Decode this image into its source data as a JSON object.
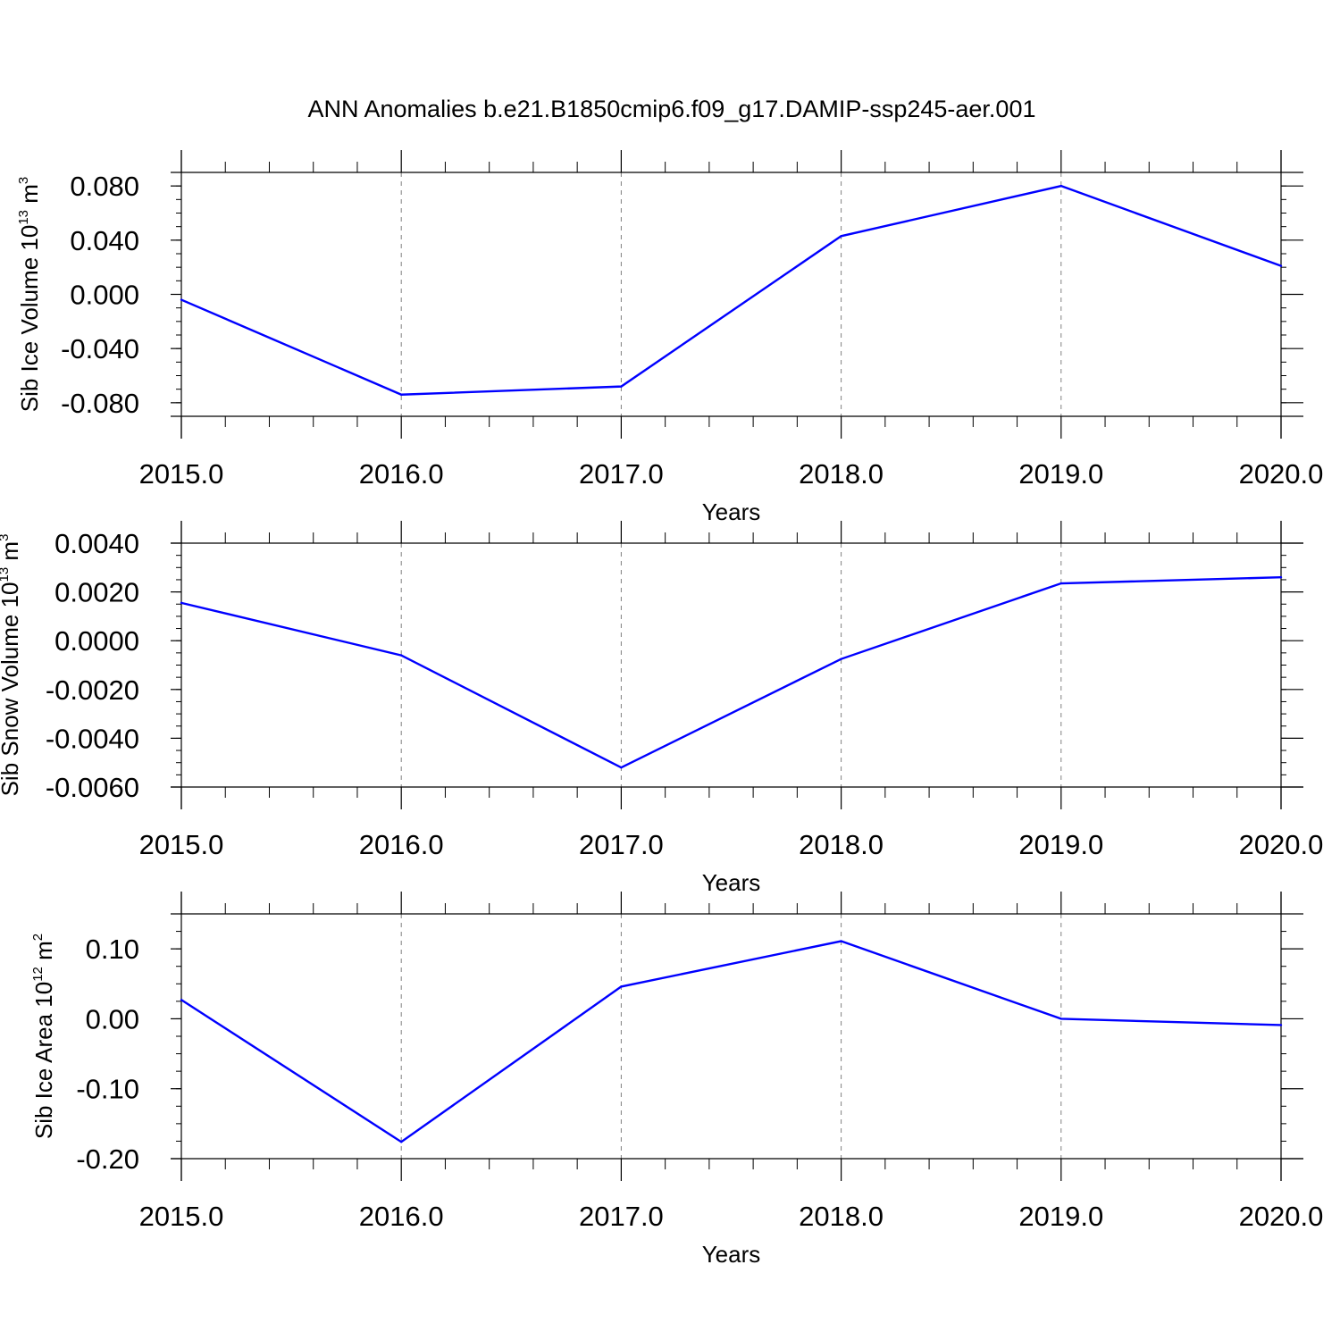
{
  "figure": {
    "title": "ANN Anomalies b.e21.B1850cmip6.f09_g17.DAMIP-ssp245-aer.001"
  },
  "chart_data": [
    {
      "type": "line",
      "ylabel": {
        "base": "Sib Ice Volume 10",
        "exp1": "13",
        "unit": " m",
        "exp2": "3"
      },
      "xlabel": "Years",
      "x": [
        2015,
        2016,
        2017,
        2018,
        2019,
        2020
      ],
      "xlim": [
        2015,
        2020
      ],
      "xticks": [
        "2015.0",
        "2016.0",
        "2017.0",
        "2018.0",
        "2019.0",
        "2020.0"
      ],
      "series": [
        {
          "values": [
            -0.004,
            -0.074,
            -0.068,
            0.043,
            0.08,
            0.021
          ],
          "color": "#0000ff"
        }
      ],
      "ylim": [
        -0.09,
        0.09
      ],
      "yticks": [
        0.08,
        0.04,
        0.0,
        -0.04,
        -0.08
      ],
      "ytick_labels": [
        "0.080",
        "0.040",
        "0.000",
        "-0.040",
        "-0.080"
      ],
      "yminor_step": 0.01,
      "grid": "vertical dashed"
    },
    {
      "type": "line",
      "ylabel": {
        "base": "Sib Snow Volume 10",
        "exp1": "13",
        "unit": " m",
        "exp2": "3"
      },
      "xlabel": "Years",
      "x": [
        2015,
        2016,
        2017,
        2018,
        2019,
        2020
      ],
      "xlim": [
        2015,
        2020
      ],
      "xticks": [
        "2015.0",
        "2016.0",
        "2017.0",
        "2018.0",
        "2019.0",
        "2020.0"
      ],
      "series": [
        {
          "values": [
            0.00155,
            -0.0006,
            -0.0052,
            -0.00075,
            0.00235,
            0.0026
          ],
          "color": "#0000ff"
        }
      ],
      "ylim": [
        -0.006,
        0.004
      ],
      "yticks": [
        0.004,
        0.002,
        0.0,
        -0.002,
        -0.004,
        -0.006
      ],
      "ytick_labels": [
        "0.0040",
        "0.0020",
        "0.0000",
        "-0.0020",
        "-0.0040",
        "-0.0060"
      ],
      "yminor_step": 0.0005,
      "grid": "vertical dashed"
    },
    {
      "type": "line",
      "ylabel": {
        "base": "Sib Ice Area 10",
        "exp1": "12",
        "unit": " m",
        "exp2": "2"
      },
      "xlabel": "Years",
      "x": [
        2015,
        2016,
        2017,
        2018,
        2019,
        2020
      ],
      "xlim": [
        2015,
        2020
      ],
      "xticks": [
        "2015.0",
        "2016.0",
        "2017.0",
        "2018.0",
        "2019.0",
        "2020.0"
      ],
      "series": [
        {
          "values": [
            0.027,
            -0.176,
            0.046,
            0.111,
            0.0,
            -0.009
          ],
          "color": "#0000ff"
        }
      ],
      "ylim": [
        -0.2,
        0.15
      ],
      "yticks": [
        0.1,
        0.0,
        -0.1,
        -0.2
      ],
      "ytick_labels": [
        "0.10",
        "0.00",
        "-0.10",
        "-0.20"
      ],
      "yminor_step": 0.025,
      "grid": "vertical dashed"
    }
  ]
}
